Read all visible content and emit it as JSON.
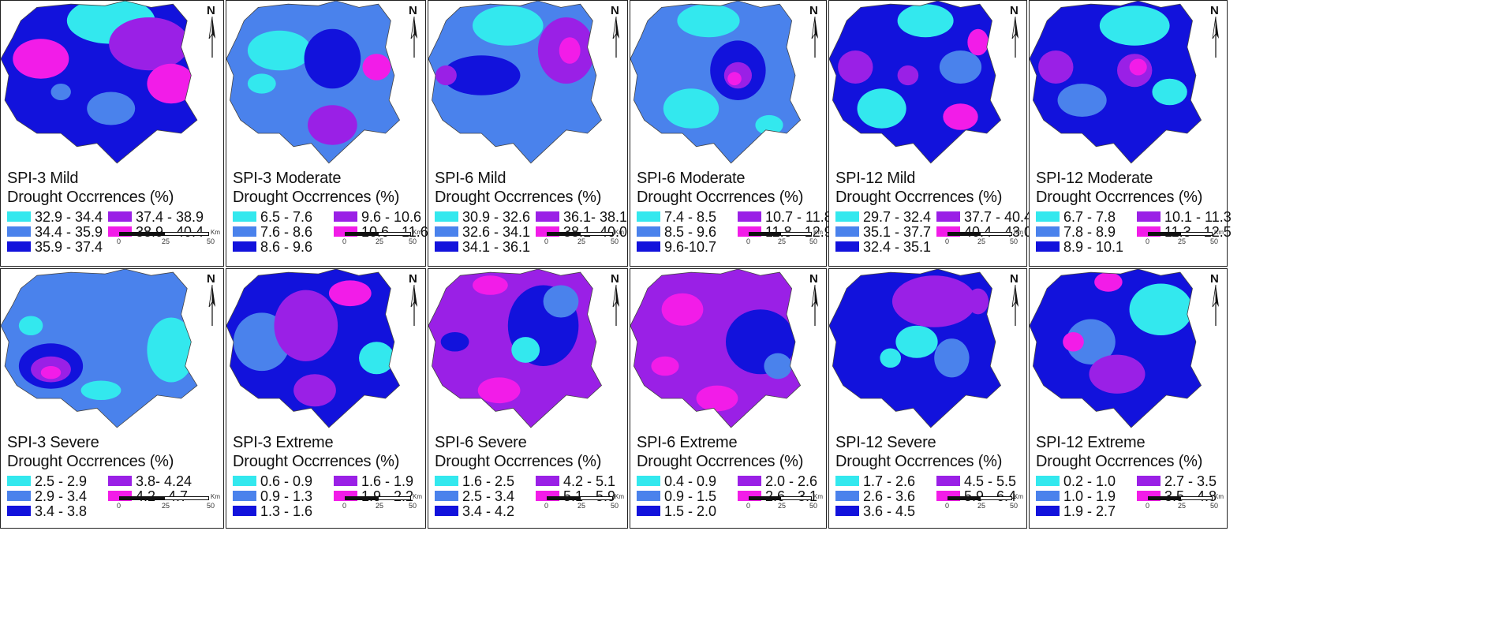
{
  "colors": {
    "c1": "#33e8ee",
    "c2": "#4a82ec",
    "c3": "#1212dc",
    "c4": "#9a20e6",
    "c5": "#f21ce8"
  },
  "north_label": "N",
  "km_label": "Km",
  "panels": [
    {
      "title1": "SPI-3 Mild",
      "title2": "Drought Occrrences (%)",
      "legend": [
        "32.9 - 34.4",
        "34.4 - 35.9",
        "35.9 - 37.4",
        "37.4 - 38.9",
        "38.9 - 40.4"
      ],
      "scale": [
        "0",
        "25",
        "50"
      ]
    },
    {
      "title1": "SPI-3 Moderate",
      "title2": "Drought Occrrences (%)",
      "legend": [
        "6.5 - 7.6",
        "7.6 - 8.6",
        "8.6 - 9.6",
        "9.6 - 10.6",
        "10.6 - 11.6"
      ],
      "scale": [
        "0",
        "25",
        "50"
      ]
    },
    {
      "title1": "SPI-6 Mild",
      "title2": "Drought Occrrences (%)",
      "legend": [
        "30.9 - 32.6",
        "32.6 - 34.1",
        "34.1 - 36.1",
        "36.1- 38.1",
        "38.1- 40.0"
      ],
      "scale": [
        "0",
        "25",
        "50"
      ]
    },
    {
      "title1": "SPI-6 Moderate",
      "title2": "Drought Occrrences (%)",
      "legend": [
        "7.4 - 8.5",
        "8.5 - 9.6",
        "9.6-10.7",
        "10.7 - 11.8",
        "11.8 - 12.9"
      ],
      "scale": [
        "0",
        "25",
        "50"
      ]
    },
    {
      "title1": "SPI-12 Mild",
      "title2": "Drought Occrrences (%)",
      "legend": [
        "29.7 - 32.4",
        "35.1 - 37.7",
        "32.4 - 35.1",
        "37.7 - 40.4",
        "40.4 - 43.0"
      ],
      "scale": [
        "0",
        "25",
        "50"
      ]
    },
    {
      "title1": "SPI-12 Moderate",
      "title2": "Drought Occrrences (%)",
      "legend": [
        "6.7 - 7.8",
        "7.8 - 8.9",
        "8.9 - 10.1",
        "10.1 - 11.3",
        "11.3 - 12.5"
      ],
      "scale": [
        "0",
        "25",
        "50"
      ]
    },
    {
      "title1": "SPI-3 Severe",
      "title2": "Drought Occrrences (%)",
      "legend": [
        "2.5 - 2.9",
        "2.9 - 3.4",
        "3.4 - 3.8",
        "3.8- 4.24",
        "4.2 - 4.7"
      ],
      "scale": [
        "0",
        "25",
        "50"
      ]
    },
    {
      "title1": "SPI-3 Extreme",
      "title2": "Drought Occrrences (%)",
      "legend": [
        "0.6 - 0.9",
        "0.9 - 1.3",
        "1.3 - 1.6",
        "1.6 - 1.9",
        "1.9 - 2.2"
      ],
      "scale": [
        "0",
        "25",
        "50"
      ]
    },
    {
      "title1": "SPI-6 Severe",
      "title2": "Drought Occrrences (%)",
      "legend": [
        "1.6 - 2.5",
        "2.5 - 3.4",
        "3.4 - 4.2",
        "4.2 - 5.1",
        "5.1 - 5.9"
      ],
      "scale": [
        "0",
        "25",
        "50"
      ]
    },
    {
      "title1": "SPI-6 Extreme",
      "title2": "Drought Occrrences (%)",
      "legend": [
        "0.4 - 0.9",
        "0.9 - 1.5",
        "1.5 - 2.0",
        "2.0 - 2.6",
        "2.6 - 3.1"
      ],
      "scale": [
        "0",
        "25",
        "50"
      ]
    },
    {
      "title1": "SPI-12 Severe",
      "title2": "Drought Occrrences (%)",
      "legend": [
        "1.7 - 2.6",
        "2.6 - 3.6",
        "3.6 - 4.5",
        "4.5 - 5.5",
        "5.9 - 6.4"
      ],
      "scale": [
        "0",
        "25",
        "50"
      ]
    },
    {
      "title1": "SPI-12 Extreme",
      "title2": "Drought Occrrences (%)",
      "legend": [
        "0.2 - 1.0",
        "1.0 - 1.9",
        "1.9 - 2.7",
        "2.7 - 3.5",
        "3.5 - 4.8"
      ],
      "scale": [
        "0",
        "25",
        "50"
      ]
    }
  ]
}
